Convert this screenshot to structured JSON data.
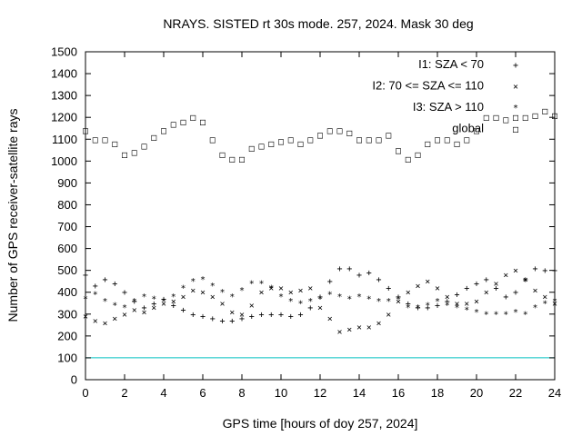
{
  "chart_data": {
    "type": "scatter",
    "title": "NRAYS. SISTED rt 30s mode. 257, 2024. Mask 30 deg",
    "xlabel": "GPS time [hours of doy 257, 2024]",
    "ylabel": "Number of GPS receiver-satellite rays",
    "xlim": [
      0,
      24
    ],
    "ylim": [
      0,
      1500
    ],
    "x_ticks": [
      "0",
      "2",
      "4",
      "6",
      "8",
      "10",
      "12",
      "14",
      "16",
      "18",
      "20",
      "22",
      "24"
    ],
    "y_ticks": [
      "0",
      "100",
      "200",
      "300",
      "400",
      "500",
      "600",
      "700",
      "800",
      "900",
      "1000",
      "1100",
      "1200",
      "1300",
      "1400",
      "1500"
    ],
    "grid": false,
    "legend_position": "top-right",
    "threshold_line": {
      "y": 100,
      "color": "#00c0c0"
    },
    "series": [
      {
        "name": "I1: SZA < 70",
        "symbol": "+",
        "color": "#e00000",
        "x": [
          0,
          0.5,
          1,
          1.5,
          2,
          2.5,
          3,
          3.5,
          4,
          4.5,
          5,
          5.5,
          6,
          6.5,
          7,
          7.5,
          8,
          8.5,
          9,
          9.5,
          10,
          10.5,
          11,
          11.5,
          12,
          12.5,
          13,
          13.5,
          14,
          14.5,
          15,
          15.5,
          16,
          16.5,
          17,
          17.5,
          18,
          18.5,
          19,
          19.5,
          20,
          20.5,
          21,
          21.5,
          22,
          22.5,
          23,
          23.5,
          24
        ],
        "values": [
          480,
          430,
          460,
          440,
          400,
          360,
          330,
          350,
          370,
          340,
          320,
          300,
          290,
          280,
          270,
          270,
          280,
          290,
          300,
          300,
          300,
          290,
          300,
          330,
          380,
          450,
          510,
          510,
          480,
          490,
          460,
          420,
          380,
          350,
          330,
          330,
          340,
          360,
          390,
          420,
          440,
          460,
          420,
          380,
          400,
          460,
          510,
          500,
          500
        ]
      },
      {
        "name": "I2: 70 <= SZA <= 110",
        "symbol": "×",
        "color": "#00b000",
        "x": [
          0,
          0.5,
          1,
          1.5,
          2,
          2.5,
          3,
          3.5,
          4,
          4.5,
          5,
          5.5,
          6,
          6.5,
          7,
          7.5,
          8,
          8.5,
          9,
          9.5,
          10,
          10.5,
          11,
          11.5,
          12,
          12.5,
          13,
          13.5,
          14,
          14.5,
          15,
          15.5,
          16,
          16.5,
          17,
          17.5,
          18,
          18.5,
          19,
          19.5,
          20,
          20.5,
          21,
          21.5,
          22,
          22.5,
          23,
          23.5,
          24
        ],
        "values": [
          290,
          270,
          260,
          280,
          300,
          320,
          310,
          330,
          350,
          360,
          380,
          410,
          400,
          380,
          350,
          310,
          300,
          340,
          400,
          420,
          420,
          400,
          410,
          420,
          330,
          280,
          220,
          230,
          240,
          240,
          260,
          300,
          360,
          400,
          430,
          450,
          420,
          380,
          350,
          350,
          360,
          400,
          440,
          480,
          500,
          460,
          410,
          380,
          350
        ]
      },
      {
        "name": "I3: SZA > 110",
        "symbol": "*",
        "color": "#1f6fd0",
        "x": [
          0,
          0.5,
          1,
          1.5,
          2,
          2.5,
          3,
          3.5,
          4,
          4.5,
          5,
          5.5,
          6,
          6.5,
          7,
          7.5,
          8,
          8.5,
          9,
          9.5,
          10,
          10.5,
          11,
          11.5,
          12,
          12.5,
          13,
          13.5,
          14,
          14.5,
          15,
          15.5,
          16,
          16.5,
          17,
          17.5,
          18,
          18.5,
          19,
          19.5,
          20,
          20.5,
          21,
          21.5,
          22,
          22.5,
          23,
          23.5,
          24
        ],
        "values": [
          370,
          390,
          360,
          340,
          330,
          360,
          380,
          370,
          360,
          380,
          420,
          450,
          460,
          430,
          400,
          380,
          410,
          440,
          440,
          420,
          380,
          360,
          350,
          360,
          370,
          390,
          380,
          370,
          380,
          370,
          360,
          360,
          370,
          330,
          330,
          340,
          360,
          340,
          330,
          320,
          310,
          300,
          300,
          300,
          310,
          300,
          330,
          350,
          360
        ]
      },
      {
        "name": "global",
        "symbol": "□",
        "color": "#a020f0",
        "x": [
          0,
          0.5,
          1,
          1.5,
          2,
          2.5,
          3,
          3.5,
          4,
          4.5,
          5,
          5.5,
          6,
          6.5,
          7,
          7.5,
          8,
          8.5,
          9,
          9.5,
          10,
          10.5,
          11,
          11.5,
          12,
          12.5,
          13,
          13.5,
          14,
          14.5,
          15,
          15.5,
          16,
          16.5,
          17,
          17.5,
          18,
          18.5,
          19,
          19.5,
          20,
          20.5,
          21,
          21.5,
          22,
          22.5,
          23,
          23.5,
          24
        ],
        "values": [
          1140,
          1100,
          1100,
          1080,
          1030,
          1040,
          1070,
          1110,
          1140,
          1170,
          1180,
          1200,
          1180,
          1100,
          1030,
          1010,
          1010,
          1060,
          1070,
          1080,
          1090,
          1100,
          1080,
          1100,
          1120,
          1140,
          1140,
          1130,
          1100,
          1100,
          1100,
          1120,
          1050,
          1010,
          1030,
          1080,
          1100,
          1100,
          1080,
          1100,
          1140,
          1200,
          1200,
          1190,
          1200,
          1200,
          1210,
          1230,
          1210
        ]
      }
    ]
  }
}
